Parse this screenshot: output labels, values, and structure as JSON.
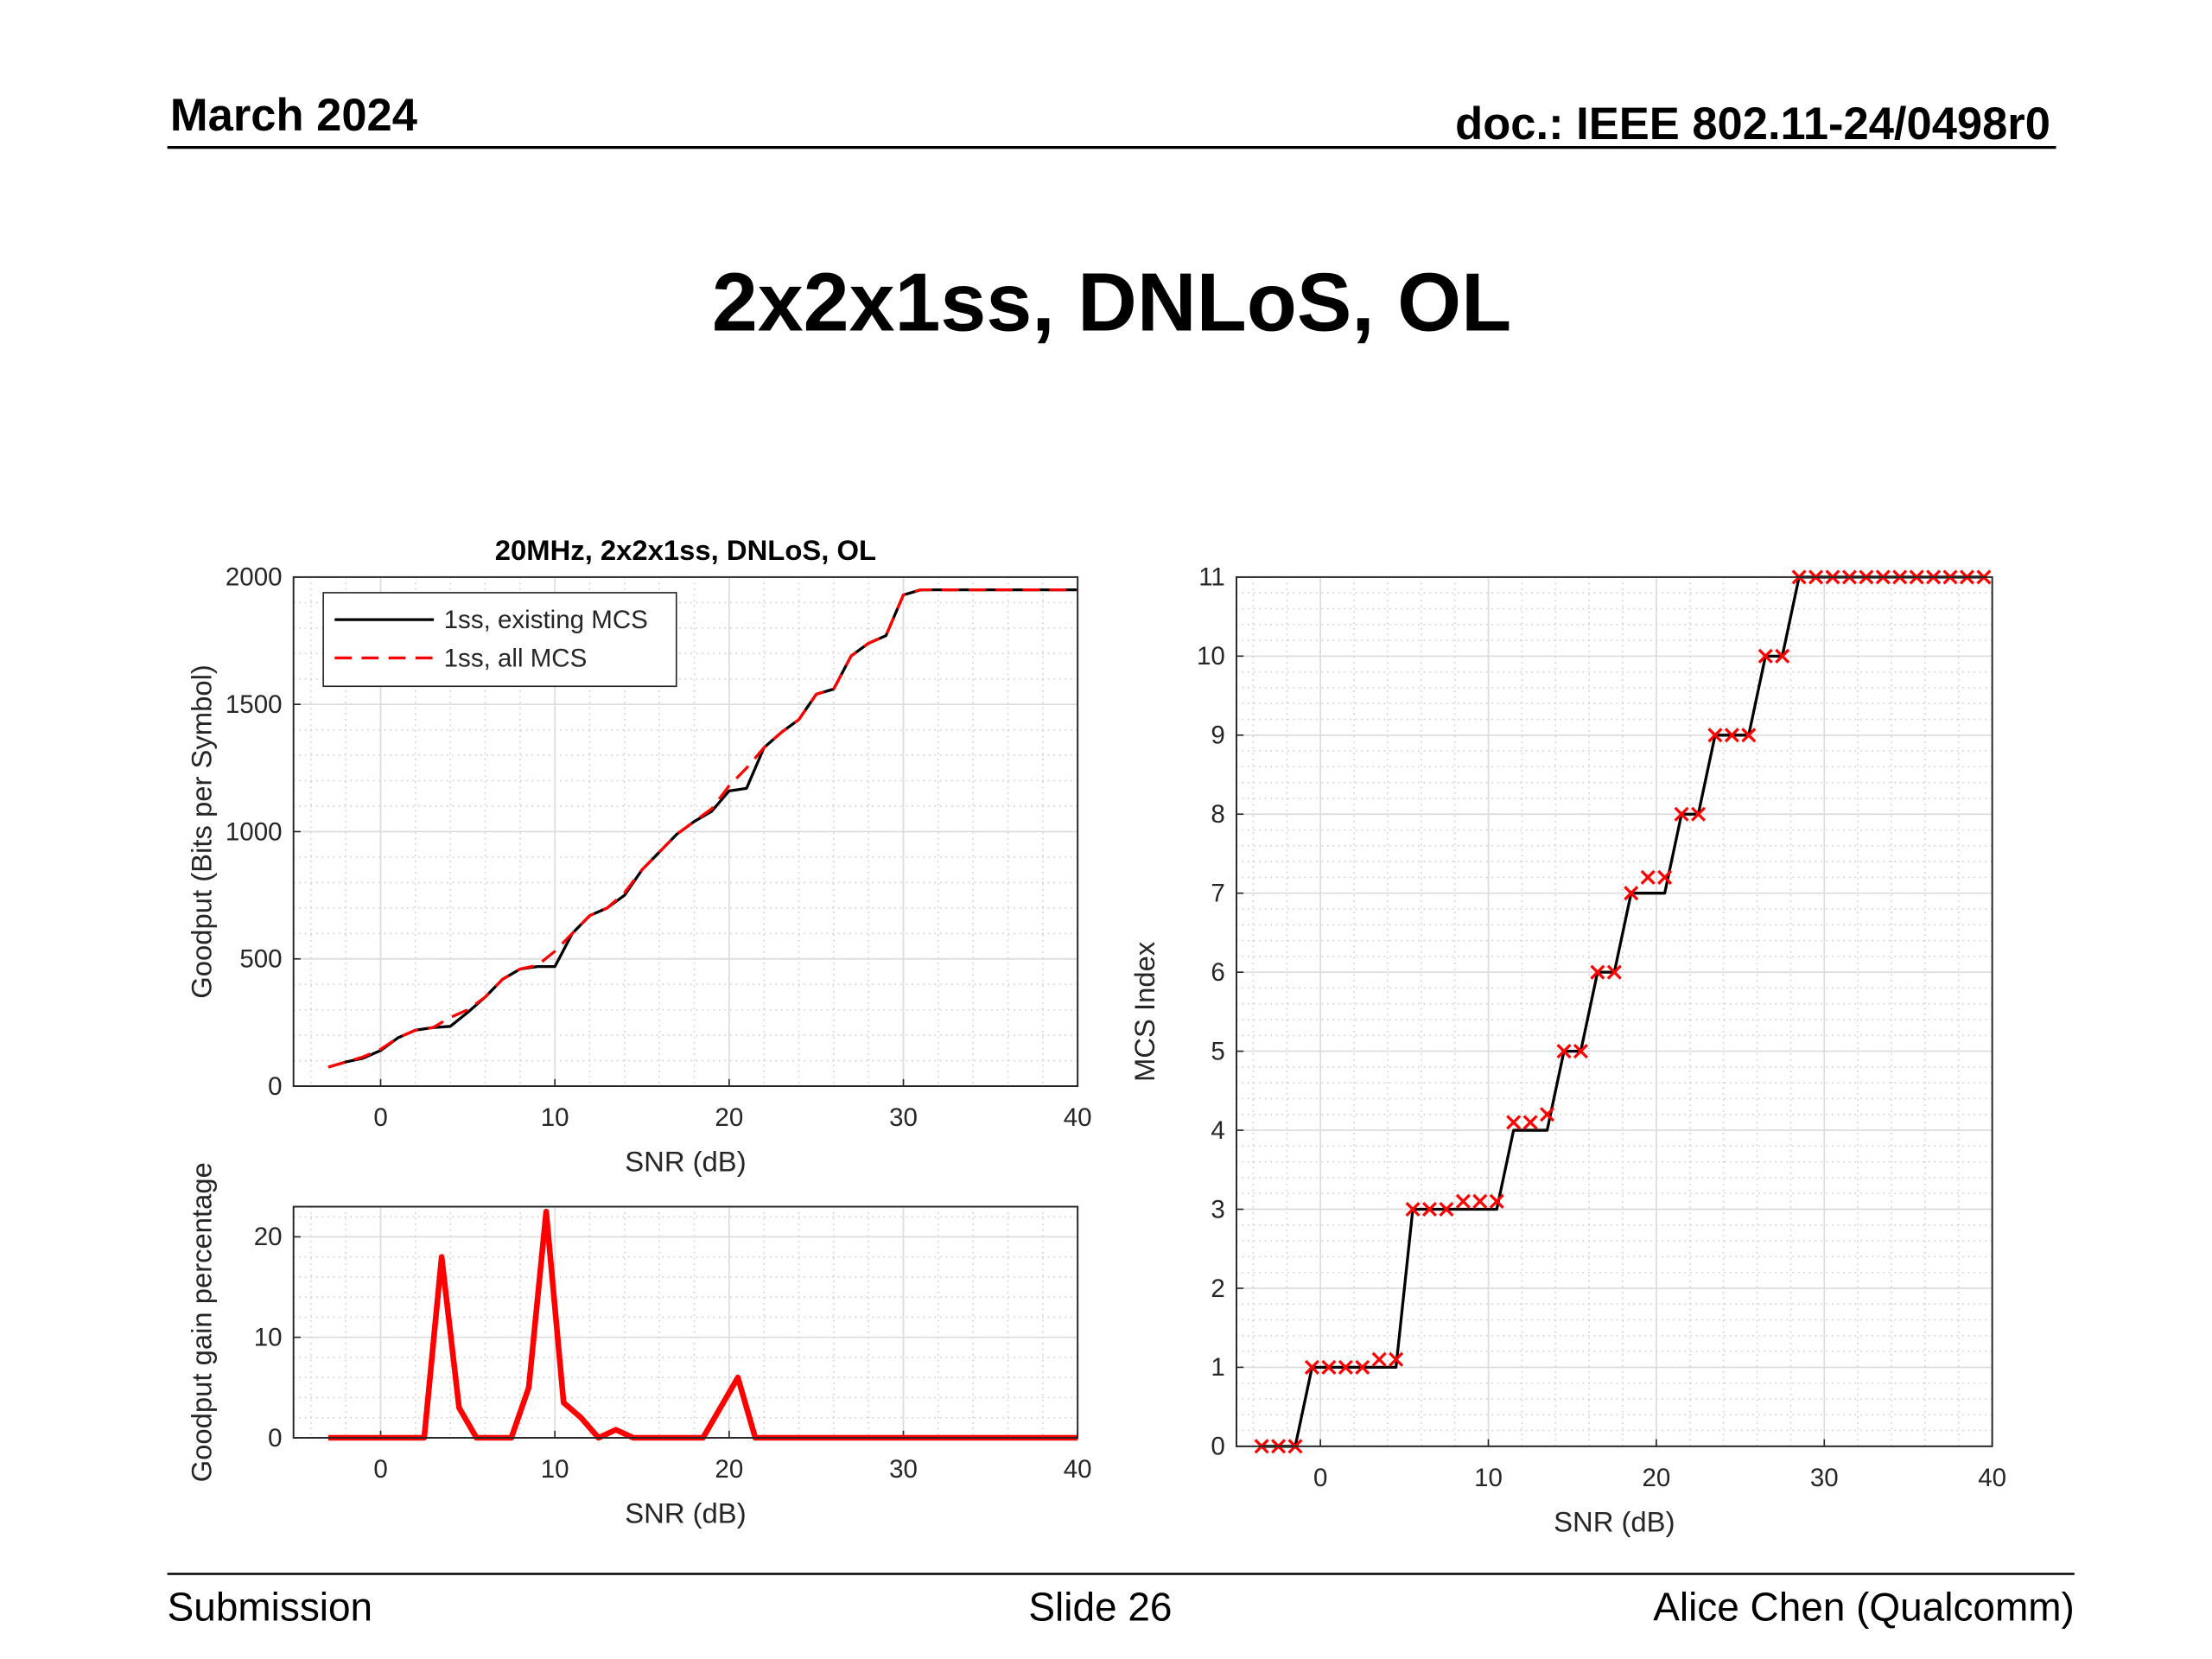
{
  "header": {
    "date": "March 2024",
    "doc": "doc.: IEEE 802.11-24/0498r0"
  },
  "title": "2x2x1ss, DNLoS, OL",
  "footer": {
    "left": "Submission",
    "center": "Slide 26",
    "right": "Alice Chen (Qualcomm)"
  },
  "chart_data": [
    {
      "type": "line",
      "title": "20MHz, 2x2x1ss, DNLoS, OL",
      "xlabel": "SNR (dB)",
      "ylabel": "Goodput (Bits per Symbol)",
      "x": [
        -3,
        -2,
        -1,
        0,
        1,
        2,
        3,
        4,
        5,
        6,
        7,
        8,
        9,
        10,
        11,
        12,
        13,
        14,
        15,
        16,
        17,
        18,
        19,
        20,
        21,
        22,
        23,
        24,
        25,
        26,
        27,
        28,
        29,
        30,
        31,
        32,
        33,
        34,
        35,
        36,
        37,
        38,
        39,
        40
      ],
      "series": [
        {
          "name": "1ss, existing MCS",
          "color": "#000000",
          "line_style": "solid",
          "values": [
            75,
            95,
            110,
            140,
            190,
            220,
            230,
            235,
            290,
            350,
            420,
            460,
            470,
            470,
            600,
            670,
            700,
            750,
            850,
            920,
            990,
            1040,
            1080,
            1160,
            1170,
            1330,
            1390,
            1440,
            1540,
            1560,
            1690,
            1740,
            1770,
            1930,
            1950,
            1950,
            1950,
            1950,
            1950,
            1950,
            1950,
            1950,
            1950,
            1950
          ]
        },
        {
          "name": "1ss, all MCS",
          "color": "#ff0000",
          "line_style": "dashed",
          "values": [
            75,
            95,
            115,
            145,
            190,
            220,
            230,
            270,
            300,
            350,
            420,
            460,
            475,
            530,
            600,
            670,
            700,
            760,
            850,
            920,
            990,
            1040,
            1090,
            1180,
            1250,
            1330,
            1390,
            1440,
            1540,
            1560,
            1690,
            1740,
            1770,
            1930,
            1950,
            1950,
            1950,
            1950,
            1950,
            1950,
            1950,
            1950,
            1950,
            1950
          ]
        }
      ],
      "xlim": [
        -5,
        40
      ],
      "xticks": [
        0,
        10,
        20,
        30,
        40
      ],
      "ylim": [
        0,
        2000
      ],
      "yticks": [
        0,
        500,
        1000,
        1500,
        2000
      ],
      "grid": true,
      "minor_grid": true,
      "legend": "upper left"
    },
    {
      "type": "line",
      "xlabel": "SNR (dB)",
      "ylabel": "Goodput gain percentage",
      "x": [
        -3,
        2.5,
        3.5,
        4.5,
        5.5,
        7.5,
        8.5,
        9.5,
        10.5,
        11.5,
        12.5,
        13.5,
        14.5,
        18.5,
        20.5,
        21.5,
        40
      ],
      "series": [
        {
          "color": "#ff0000",
          "line_style": "solid",
          "values": [
            0,
            0,
            18,
            3,
            0,
            0,
            5,
            22.5,
            3.5,
            2,
            0,
            0.8,
            0,
            0,
            6,
            0,
            0
          ]
        }
      ],
      "xlim": [
        -5,
        40
      ],
      "xticks": [
        0,
        10,
        20,
        30,
        40
      ],
      "ylim": [
        0,
        23
      ],
      "yticks": [
        0,
        10,
        20
      ],
      "grid": true,
      "minor_grid": true
    },
    {
      "type": "line",
      "xlabel": "SNR (dB)",
      "ylabel": "MCS Index",
      "x": [
        -3.5,
        -2.5,
        -1.5,
        -0.5,
        0.5,
        1.5,
        2.5,
        3.5,
        4.5,
        5.5,
        6.5,
        7.5,
        8.5,
        9.5,
        10.5,
        11.5,
        12.5,
        13.5,
        14.5,
        15.5,
        16.5,
        17.5,
        18.5,
        19.5,
        20.5,
        21.5,
        22.5,
        23.5,
        24.5,
        25.5,
        26.5,
        27.5,
        28.5,
        29.5,
        30.5,
        31.5,
        32.5,
        33.5,
        34.5,
        35.5,
        36.5,
        37.5,
        38.5,
        39.5
      ],
      "series": [
        {
          "color": "#000000",
          "line_style": "solid",
          "values": [
            0,
            0,
            0,
            1,
            1,
            1,
            1,
            1,
            1,
            3,
            3,
            3,
            3,
            3,
            3,
            4,
            4,
            4,
            5,
            5,
            6,
            6,
            7,
            7,
            7,
            8,
            8,
            9,
            9,
            9,
            10,
            10,
            11,
            11,
            11,
            11,
            11,
            11,
            11,
            11,
            11,
            11,
            11,
            11
          ]
        },
        {
          "color": "#ff0000",
          "line_style": "none",
          "marker": "x",
          "values": [
            0,
            0,
            0,
            1,
            1,
            1,
            1,
            1.1,
            1.1,
            3,
            3,
            3,
            3.1,
            3.1,
            3.1,
            4.1,
            4.1,
            4.2,
            5,
            5,
            6,
            6,
            7,
            7.2,
            7.2,
            8,
            8,
            9,
            9,
            9,
            10,
            10,
            11,
            11,
            11,
            11,
            11,
            11,
            11,
            11,
            11,
            11,
            11,
            11
          ]
        }
      ],
      "xlim": [
        -5,
        40
      ],
      "xticks": [
        0,
        10,
        20,
        30,
        40
      ],
      "ylim": [
        0,
        11
      ],
      "yticks": [
        0,
        1,
        2,
        3,
        4,
        5,
        6,
        7,
        8,
        9,
        10,
        11
      ],
      "grid": true,
      "minor_grid": true
    }
  ]
}
